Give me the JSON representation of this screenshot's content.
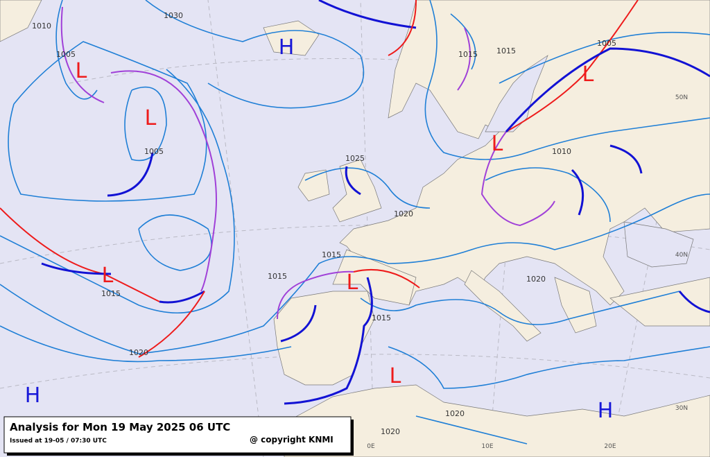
{
  "title_box": {
    "title": "Analysis for Mon 19 May 2025 06 UTC",
    "issued": "Issued at 19-05 / 07:30 UTC",
    "copyright": "@ copyright KNMI"
  },
  "pressure_centers": [
    {
      "label": "H"
    },
    {
      "label": "L"
    },
    {
      "label": "L"
    },
    {
      "label": "L"
    },
    {
      "label": "L"
    },
    {
      "label": "L"
    },
    {
      "label": "L"
    },
    {
      "label": "L"
    },
    {
      "label": "H"
    },
    {
      "label": "H"
    }
  ],
  "isobar_labels": [
    "1010",
    "1030",
    "1005",
    "1015",
    "1015",
    "1005",
    "1005",
    "1025",
    "1010",
    "1020",
    "1015",
    "1015",
    "1015",
    "1015",
    "1020",
    "1020",
    "1020",
    "1020"
  ],
  "grid_labels": [
    "50N",
    "40N",
    "30N",
    "0E",
    "10E",
    "20E"
  ]
}
